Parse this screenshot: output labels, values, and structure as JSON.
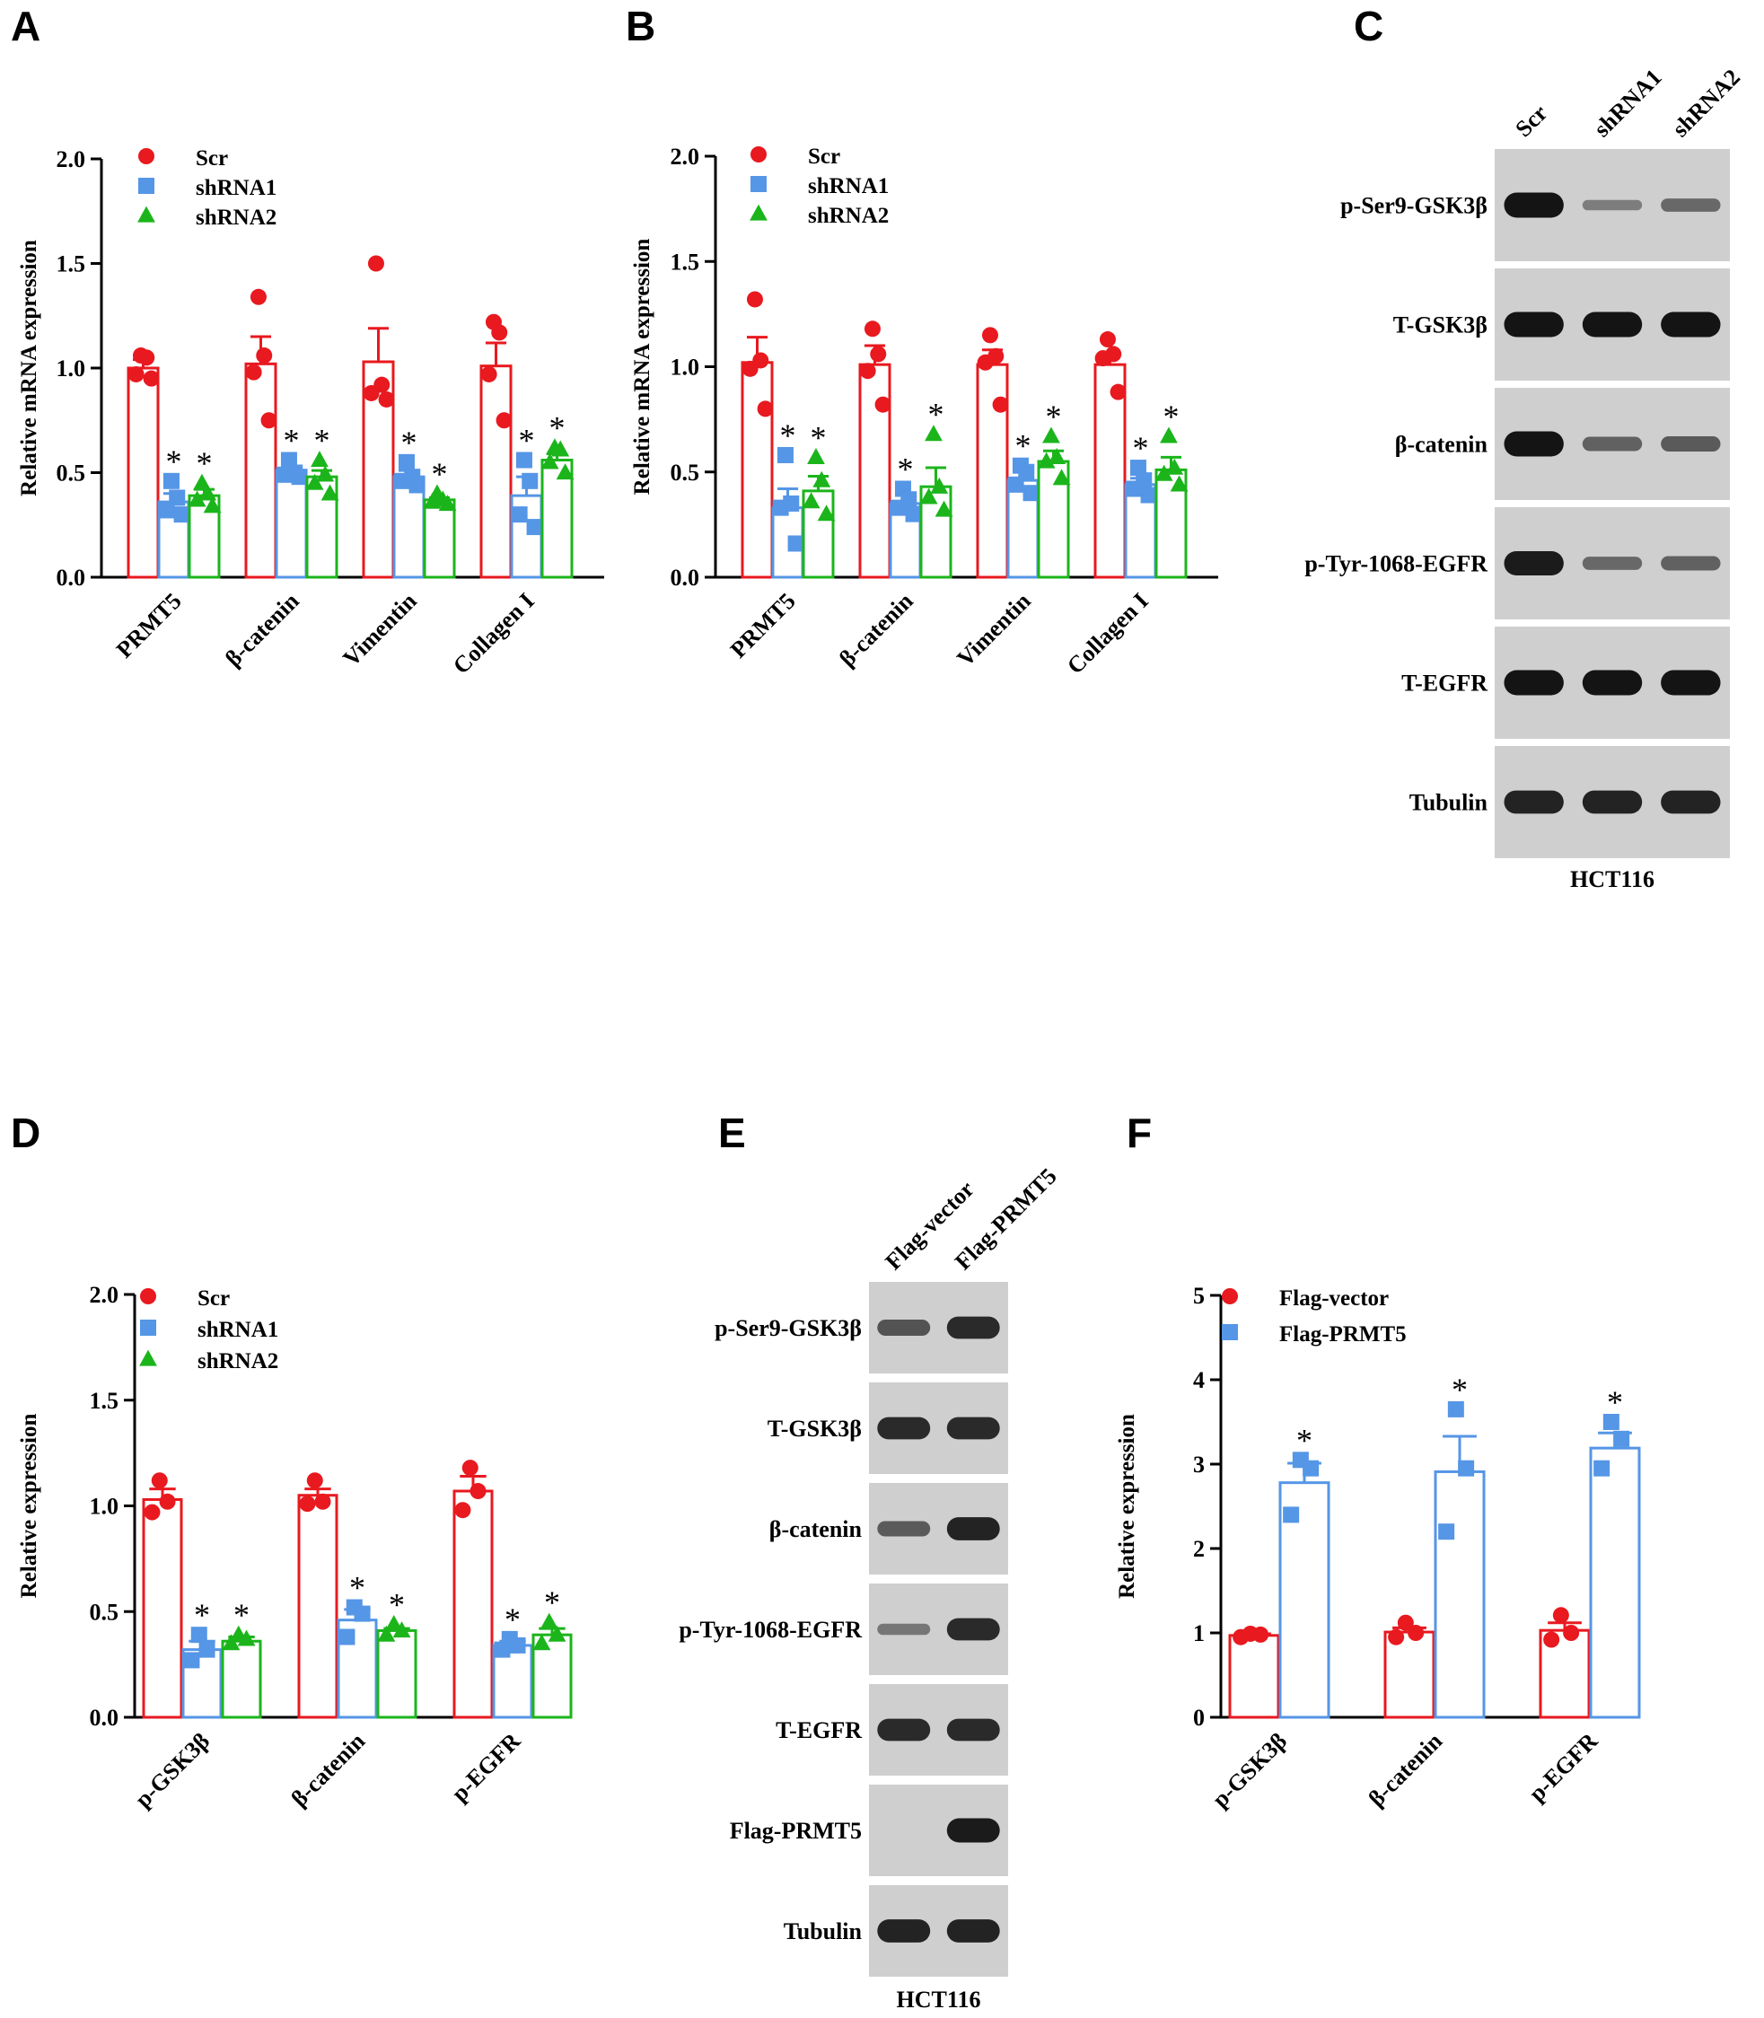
{
  "panels": {
    "A": "A",
    "B": "B",
    "C": "C",
    "D": "D",
    "E": "E",
    "F": "F"
  },
  "colors": {
    "Scr": "#e8191f",
    "shRNA1": "#5596e6",
    "shRNA2": "#1bb51b",
    "Flag-vector": "#e8191f",
    "Flag-PRMT5": "#5596e6",
    "blot_bg": "#cfcfcf",
    "band": "#141414"
  },
  "chart_data": [
    {
      "panel": "A",
      "type": "bar",
      "ylabel": "Relative mRNA expression",
      "ylim": [
        0,
        2.0
      ],
      "yticks": [
        "0.0",
        "0.5",
        "1.0",
        "1.5",
        "2.0"
      ],
      "categories": [
        "PRMT5",
        "β-catenin",
        "Vimentin",
        "Collagen I"
      ],
      "significance": "*",
      "series": [
        {
          "name": "Scr",
          "marker": "circle",
          "values": [
            1.0,
            1.02,
            1.03,
            1.01
          ],
          "sem": [
            0.04,
            0.13,
            0.16,
            0.11
          ],
          "points": [
            [
              1.06,
              1.05,
              0.97,
              0.95
            ],
            [
              1.34,
              1.06,
              0.98,
              0.75
            ],
            [
              1.5,
              0.92,
              0.88,
              0.85
            ],
            [
              1.22,
              1.17,
              0.97,
              0.75
            ]
          ],
          "sig": [
            false,
            false,
            false,
            false
          ]
        },
        {
          "name": "shRNA1",
          "marker": "square",
          "values": [
            0.36,
            0.51,
            0.48,
            0.39
          ],
          "sem": [
            0.04,
            0.02,
            0.03,
            0.09
          ],
          "points": [
            [
              0.46,
              0.38,
              0.32,
              0.3
            ],
            [
              0.56,
              0.5,
              0.49,
              0.48
            ],
            [
              0.55,
              0.48,
              0.46,
              0.44
            ],
            [
              0.56,
              0.46,
              0.3,
              0.24
            ]
          ],
          "sig": [
            true,
            true,
            true,
            true
          ]
        },
        {
          "name": "shRNA2",
          "marker": "triangle",
          "values": [
            0.39,
            0.48,
            0.37,
            0.56
          ],
          "sem": [
            0.03,
            0.03,
            0.01,
            0.03
          ],
          "points": [
            [
              0.45,
              0.4,
              0.37,
              0.34
            ],
            [
              0.56,
              0.49,
              0.45,
              0.4
            ],
            [
              0.4,
              0.37,
              0.36,
              0.35
            ],
            [
              0.62,
              0.61,
              0.55,
              0.5
            ]
          ],
          "sig": [
            true,
            true,
            true,
            true
          ]
        }
      ]
    },
    {
      "panel": "B",
      "type": "bar",
      "ylabel": "Relative mRNA expression",
      "ylim": [
        0,
        2.0
      ],
      "yticks": [
        "0.0",
        "0.5",
        "1.0",
        "1.5",
        "2.0"
      ],
      "categories": [
        "PRMT5",
        "β-catenin",
        "Vimentin",
        "Collagen I"
      ],
      "significance": "*",
      "series": [
        {
          "name": "Scr",
          "marker": "circle",
          "values": [
            1.02,
            1.01,
            1.01,
            1.01
          ],
          "sem": [
            0.12,
            0.09,
            0.07,
            0.06
          ],
          "points": [
            [
              1.32,
              1.03,
              0.99,
              0.8
            ],
            [
              1.18,
              1.06,
              0.98,
              0.82
            ],
            [
              1.15,
              1.05,
              1.02,
              0.82
            ],
            [
              1.13,
              1.06,
              1.04,
              0.88
            ]
          ],
          "sig": [
            false,
            false,
            false,
            false
          ]
        },
        {
          "name": "shRNA1",
          "marker": "square",
          "values": [
            0.33,
            0.35,
            0.46,
            0.44
          ],
          "sem": [
            0.09,
            0.04,
            0.04,
            0.03
          ],
          "points": [
            [
              0.58,
              0.35,
              0.33,
              0.16
            ],
            [
              0.42,
              0.37,
              0.33,
              0.3
            ],
            [
              0.53,
              0.5,
              0.44,
              0.4
            ],
            [
              0.52,
              0.46,
              0.42,
              0.39
            ]
          ],
          "sig": [
            true,
            true,
            true,
            true
          ]
        },
        {
          "name": "shRNA2",
          "marker": "triangle",
          "values": [
            0.41,
            0.43,
            0.55,
            0.51
          ],
          "sem": [
            0.07,
            0.09,
            0.05,
            0.06
          ],
          "points": [
            [
              0.57,
              0.46,
              0.36,
              0.3
            ],
            [
              0.68,
              0.43,
              0.38,
              0.32
            ],
            [
              0.67,
              0.57,
              0.55,
              0.47
            ],
            [
              0.67,
              0.52,
              0.49,
              0.44
            ]
          ],
          "sig": [
            true,
            true,
            true,
            true
          ]
        }
      ]
    },
    {
      "panel": "D",
      "type": "bar",
      "ylabel": "Relative expression",
      "ylim": [
        0,
        2.0
      ],
      "yticks": [
        "0.0",
        "0.5",
        "1.0",
        "1.5",
        "2.0"
      ],
      "categories": [
        "p-GSK3β",
        "β-catenin",
        "p-EGFR"
      ],
      "significance": "*",
      "series": [
        {
          "name": "Scr",
          "marker": "circle",
          "values": [
            1.03,
            1.05,
            1.07
          ],
          "sem": [
            0.05,
            0.03,
            0.07
          ],
          "points": [
            [
              1.12,
              1.02,
              0.97
            ],
            [
              1.12,
              1.02,
              1.01
            ],
            [
              1.18,
              1.07,
              0.98
            ]
          ],
          "sig": [
            false,
            false,
            false
          ]
        },
        {
          "name": "shRNA1",
          "marker": "square",
          "values": [
            0.32,
            0.46,
            0.34
          ],
          "sem": [
            0.04,
            0.05,
            0.02
          ],
          "points": [
            [
              0.39,
              0.32,
              0.27
            ],
            [
              0.52,
              0.49,
              0.38
            ],
            [
              0.37,
              0.34,
              0.32
            ]
          ],
          "sig": [
            true,
            true,
            true
          ]
        },
        {
          "name": "shRNA2",
          "marker": "triangle",
          "values": [
            0.36,
            0.41,
            0.39
          ],
          "sem": [
            0.02,
            0.01,
            0.03
          ],
          "points": [
            [
              0.39,
              0.37,
              0.35
            ],
            [
              0.44,
              0.41,
              0.39
            ],
            [
              0.45,
              0.39,
              0.35
            ]
          ],
          "sig": [
            true,
            true,
            true
          ]
        }
      ]
    },
    {
      "panel": "F",
      "type": "bar",
      "ylabel": "Relative expression",
      "ylim": [
        0,
        5
      ],
      "yticks": [
        "0",
        "1",
        "2",
        "3",
        "4",
        "5"
      ],
      "categories": [
        "p-GSK3β",
        "β-catenin",
        "p-EGFR"
      ],
      "significance": "*",
      "series": [
        {
          "name": "Flag-vector",
          "marker": "circle",
          "values": [
            0.97,
            1.01,
            1.03
          ],
          "sem": [
            0.02,
            0.05,
            0.09
          ],
          "points": [
            [
              0.99,
              0.98,
              0.95
            ],
            [
              1.12,
              1.0,
              0.95
            ],
            [
              1.21,
              1.0,
              0.92
            ]
          ],
          "sig": [
            false,
            false,
            false
          ]
        },
        {
          "name": "Flag-PRMT5",
          "marker": "square",
          "values": [
            2.78,
            2.91,
            3.19
          ],
          "sem": [
            0.23,
            0.42,
            0.18
          ],
          "points": [
            [
              3.05,
              2.95,
              2.4
            ],
            [
              3.65,
              2.95,
              2.2
            ],
            [
              3.5,
              3.3,
              2.95
            ]
          ],
          "sig": [
            true,
            true,
            true
          ]
        }
      ]
    }
  ],
  "blot_C": {
    "lanes": [
      "Scr",
      "shRNA1",
      "shRNA2"
    ],
    "cell_line": "HCT116",
    "rows": [
      {
        "label": "p-Ser9-GSK3β",
        "intensity": [
          1.0,
          0.25,
          0.4
        ]
      },
      {
        "label": "T-GSK3β",
        "intensity": [
          1.0,
          1.0,
          1.0
        ]
      },
      {
        "label": "β-catenin",
        "intensity": [
          1.0,
          0.45,
          0.5
        ]
      },
      {
        "label": "p-Tyr-1068-EGFR",
        "intensity": [
          0.95,
          0.4,
          0.45
        ]
      },
      {
        "label": "T-EGFR",
        "intensity": [
          1.0,
          1.0,
          1.0
        ]
      },
      {
        "label": "Tubulin",
        "intensity": [
          0.9,
          0.9,
          0.9
        ]
      }
    ]
  },
  "blot_E": {
    "lanes": [
      "Flag-vector",
      "Flag-PRMT5"
    ],
    "cell_line": "HCT116",
    "rows": [
      {
        "label": "p-Ser9-GSK3β",
        "intensity": [
          0.55,
          0.85
        ]
      },
      {
        "label": "T-GSK3β",
        "intensity": [
          0.85,
          0.85
        ]
      },
      {
        "label": "β-catenin",
        "intensity": [
          0.5,
          0.9
        ]
      },
      {
        "label": "p-Tyr-1068-EGFR",
        "intensity": [
          0.3,
          0.85
        ]
      },
      {
        "label": "T-EGFR",
        "intensity": [
          0.85,
          0.85
        ]
      },
      {
        "label": "Flag-PRMT5",
        "intensity": [
          0.0,
          0.95
        ]
      },
      {
        "label": "Tubulin",
        "intensity": [
          0.9,
          0.9
        ]
      }
    ]
  }
}
